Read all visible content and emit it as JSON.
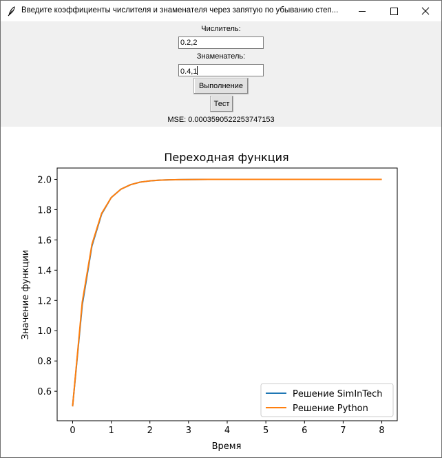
{
  "window": {
    "title": "Введите коэффициенты числителя и знаменателя через запятую по убыванию степ...",
    "icons": [
      "feather-icon",
      "minimize-icon",
      "maximize-icon",
      "close-icon"
    ]
  },
  "form": {
    "numerator_label": "Числитель:",
    "numerator_value": "0.2,2",
    "denominator_label": "Знаменатель:",
    "denominator_value": "0.4,1",
    "run_button": "Выполнение",
    "test_button": "Тест",
    "mse_text": "MSE: 0.0003590522253747153"
  },
  "chart_data": {
    "type": "line",
    "title": "Переходная функция",
    "xlabel": "Время",
    "ylabel": "Значение функции",
    "xlim": [
      -0.4,
      8.4
    ],
    "ylim": [
      0.405,
      2.075
    ],
    "xticks": [
      0,
      1,
      2,
      3,
      4,
      5,
      6,
      7,
      8
    ],
    "yticks": [
      0.6,
      0.8,
      1.0,
      1.2,
      1.4,
      1.6,
      1.8,
      2.0
    ],
    "ytick_labels": [
      "0.6",
      "0.8",
      "1.0",
      "1.2",
      "1.4",
      "1.6",
      "1.8",
      "2.0"
    ],
    "legend_position": "lower-right",
    "series": [
      {
        "name": "Решение SimInTech",
        "color": "#1f77b4",
        "x": [
          0,
          0.25,
          0.5,
          0.75,
          1.0,
          1.25,
          1.5,
          1.75,
          2.0,
          2.25,
          2.5,
          2.75,
          3.0,
          3.5,
          4.0,
          5.0,
          6.0,
          7.0,
          8.0
        ],
        "y": [
          0.5,
          1.17,
          1.56,
          1.77,
          1.88,
          1.935,
          1.965,
          1.982,
          1.99,
          1.995,
          1.997,
          1.998,
          1.999,
          2.0,
          2.0,
          2.0,
          2.0,
          2.0,
          2.0
        ]
      },
      {
        "name": "Решение Python",
        "color": "#ff7f0e",
        "x": [
          0,
          0.25,
          0.5,
          0.75,
          1.0,
          1.25,
          1.5,
          1.75,
          2.0,
          2.25,
          2.5,
          2.75,
          3.0,
          3.5,
          4.0,
          5.0,
          6.0,
          7.0,
          8.0
        ],
        "y": [
          0.5,
          1.19,
          1.57,
          1.775,
          1.88,
          1.935,
          1.965,
          1.982,
          1.99,
          1.995,
          1.997,
          1.998,
          1.999,
          2.0,
          2.0,
          2.0,
          2.0,
          2.0,
          2.0
        ]
      }
    ]
  }
}
